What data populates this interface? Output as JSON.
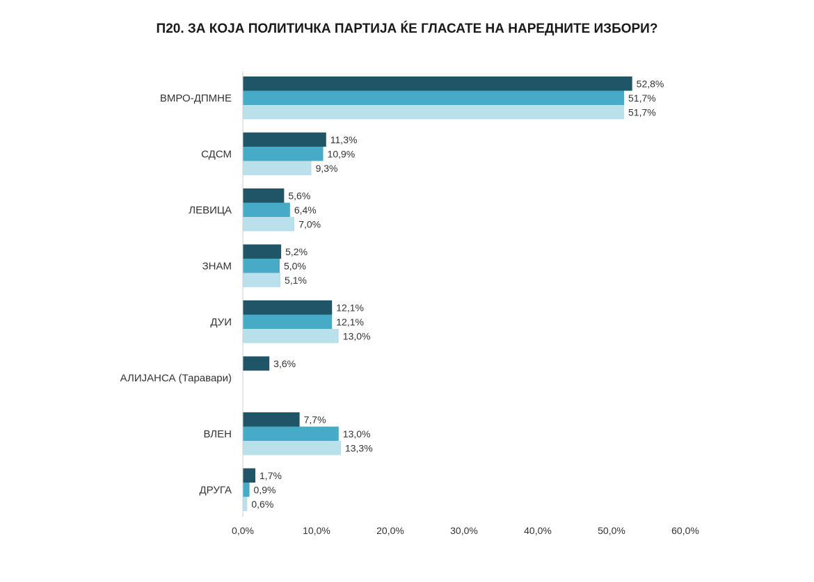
{
  "chart_data": {
    "type": "bar",
    "orientation": "horizontal",
    "title": "П20. ЗА КОЈА ПОЛИТИЧКА ПАРТИЈА ЌЕ ГЛАСАТЕ НА НАРЕДНИТЕ ИЗБОРИ?",
    "categories": [
      "ВМРО-ДПМНЕ",
      "СДСМ",
      "ЛЕВИЦА",
      "ЗНАМ",
      "ДУИ",
      "АЛИЈАНСА (Таравари)",
      "ВЛЕН",
      "ДРУГА"
    ],
    "series": [
      {
        "color": "#1f5566",
        "values": [
          52.8,
          11.3,
          5.6,
          5.2,
          12.1,
          3.6,
          7.7,
          1.7
        ],
        "labels": [
          "52,8%",
          "11,3%",
          "5,6%",
          "5,2%",
          "12,1%",
          "3,6%",
          "7,7%",
          "1,7%"
        ]
      },
      {
        "color": "#47abc8",
        "values": [
          51.7,
          10.9,
          6.4,
          5.0,
          12.1,
          null,
          13.0,
          0.9
        ],
        "labels": [
          "51,7%",
          "10,9%",
          "6,4%",
          "5,0%",
          "12,1%",
          "",
          "13,0%",
          "0,9%"
        ]
      },
      {
        "color": "#b9e0eb",
        "values": [
          51.7,
          9.3,
          7.0,
          5.1,
          13.0,
          null,
          13.3,
          0.6
        ],
        "labels": [
          "51,7%",
          "9,3%",
          "7,0%",
          "5,1%",
          "13,0%",
          "",
          "13,3%",
          "0,6%"
        ]
      }
    ],
    "xlim": [
      0,
      60
    ],
    "ticks": [
      0,
      10,
      20,
      30,
      40,
      50,
      60
    ],
    "tick_labels": [
      "0,0%",
      "10,0%",
      "20,0%",
      "30,0%",
      "40,0%",
      "50,0%",
      "60,0%"
    ],
    "grid": false,
    "legend": "none"
  }
}
